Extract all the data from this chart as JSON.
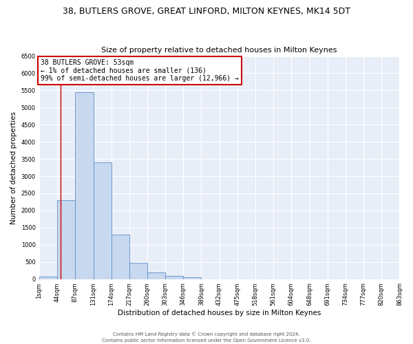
{
  "title": "38, BUTLERS GROVE, GREAT LINFORD, MILTON KEYNES, MK14 5DT",
  "subtitle": "Size of property relative to detached houses in Milton Keynes",
  "xlabel": "Distribution of detached houses by size in Milton Keynes",
  "ylabel": "Number of detached properties",
  "bin_edges": [
    1,
    44,
    87,
    131,
    174,
    217,
    260,
    303,
    346,
    389,
    432,
    475,
    518,
    561,
    604,
    648,
    691,
    734,
    777,
    820,
    863
  ],
  "bar_heights": [
    75,
    2300,
    5450,
    3400,
    1300,
    475,
    200,
    85,
    50,
    0,
    0,
    0,
    0,
    0,
    0,
    0,
    0,
    0,
    0,
    0
  ],
  "bar_color": "#c8d8ef",
  "bar_edgecolor": "#5b8fc9",
  "background_color": "#e8eef8",
  "grid_color": "#ffffff",
  "red_line_x": 53,
  "annotation_text": "38 BUTLERS GROVE: 53sqm\n← 1% of detached houses are smaller (136)\n99% of semi-detached houses are larger (12,966) →",
  "annotation_box_facecolor": "#ffffff",
  "annotation_box_edgecolor": "#cc0000",
  "ylim": [
    0,
    6500
  ],
  "yticks": [
    0,
    500,
    1000,
    1500,
    2000,
    2500,
    3000,
    3500,
    4000,
    4500,
    5000,
    5500,
    6000,
    6500
  ],
  "footer_line1": "Contains HM Land Registry data © Crown copyright and database right 2024.",
  "footer_line2": "Contains public sector information licensed under the Open Government Licence v3.0.",
  "title_fontsize": 9,
  "subtitle_fontsize": 8,
  "tick_label_fontsize": 6,
  "ylabel_fontsize": 7.5,
  "xlabel_fontsize": 7.5,
  "annotation_fontsize": 7,
  "footer_fontsize": 5
}
